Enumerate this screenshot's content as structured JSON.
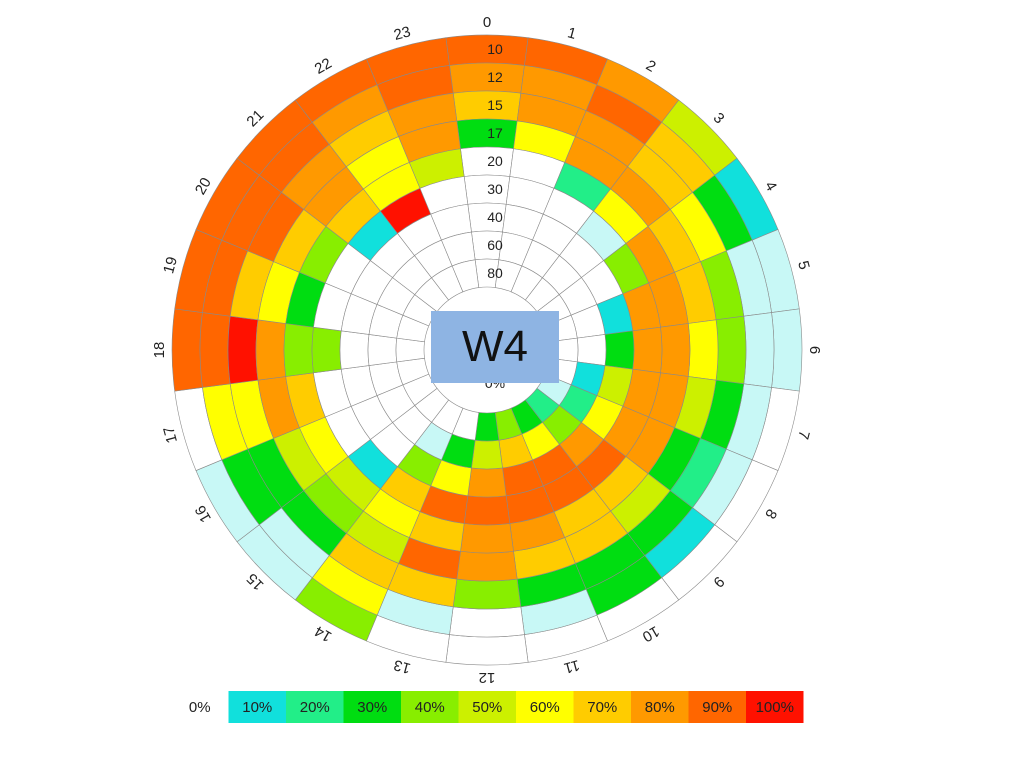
{
  "title": "W4",
  "colors": {
    "scale": [
      "#ffffff",
      "#c8f8f6",
      "#11e0dc",
      "#22ee88",
      "#00dd11",
      "#88ee00",
      "#ccf000",
      "#ffff00",
      "#ffcc00",
      "#ff9900",
      "#ff6600",
      "#ff1100"
    ]
  },
  "chart_data": {
    "type": "heatmap",
    "title": "W4",
    "angular_axis": {
      "labels": [
        "0",
        "1",
        "2",
        "3",
        "4",
        "5",
        "6",
        "7",
        "8",
        "9",
        "10",
        "11",
        "12",
        "13",
        "14",
        "15",
        "16",
        "17",
        "18",
        "19",
        "20",
        "21",
        "22",
        "23"
      ]
    },
    "radial_axis": {
      "labels_outer_to_inner": [
        "10",
        "12",
        "15",
        "17",
        "20",
        "30",
        "40",
        "60",
        "80",
        "0%"
      ]
    },
    "legend": {
      "labels": [
        "0%",
        "10%",
        "20%",
        "30%",
        "40%",
        "50%",
        "60%",
        "70%",
        "80%",
        "90%",
        "100%"
      ],
      "placement": "bottom"
    },
    "color_code_note": "cell values: 0 = 0%, 0.5 = light cyan, 1 = 10%, 2 = 20%, ... 10 = 100%",
    "rows_by_ring_outer_to_inner": [
      [
        9,
        9,
        8,
        5,
        1,
        0.5,
        0.5,
        0,
        0,
        0,
        0,
        0,
        0,
        0,
        4,
        0.5,
        0.5,
        0,
        9,
        9,
        9,
        9,
        9,
        9
      ],
      [
        8,
        8,
        9,
        7,
        3,
        0.5,
        0.5,
        0.5,
        0.5,
        1,
        3,
        0.5,
        0,
        0.5,
        6,
        0.5,
        3,
        6,
        9,
        9,
        9,
        9,
        8,
        9
      ],
      [
        7,
        8,
        8,
        7,
        6,
        4,
        4,
        3,
        2,
        3,
        3,
        3,
        4,
        7,
        7,
        3,
        3,
        6,
        10,
        7,
        9,
        8,
        7,
        8
      ],
      [
        3,
        6,
        8,
        8,
        7,
        7,
        6,
        5,
        3,
        5,
        7,
        7,
        8,
        9,
        5,
        4,
        5,
        8,
        8,
        6,
        7,
        8,
        6,
        8
      ],
      [
        0,
        0,
        2,
        6,
        8,
        8,
        8,
        8,
        8,
        7,
        7,
        8,
        8,
        7,
        6,
        5,
        6,
        7,
        4,
        3,
        4,
        7,
        6,
        5
      ],
      [
        0,
        0,
        0,
        0.5,
        4,
        8,
        8,
        8,
        8,
        9,
        9,
        9,
        9,
        9,
        7,
        1,
        0,
        0,
        4,
        0,
        0,
        1,
        10,
        0
      ],
      [
        0,
        0,
        0,
        0,
        0,
        1,
        3,
        5,
        6,
        8,
        9,
        9,
        8,
        6,
        4,
        0,
        0,
        0,
        0,
        0,
        0,
        0,
        0,
        0
      ],
      [
        0,
        0,
        0,
        0,
        0,
        0,
        0,
        1,
        2,
        4,
        6,
        7,
        5,
        3,
        0.5,
        0,
        0,
        0,
        0,
        0,
        0,
        0,
        0,
        0
      ],
      [
        0,
        0,
        0,
        0,
        0,
        0,
        0,
        0,
        0.5,
        2,
        3,
        4,
        3,
        0,
        0,
        0,
        0,
        0,
        0,
        0,
        0,
        0,
        0,
        0
      ]
    ]
  }
}
